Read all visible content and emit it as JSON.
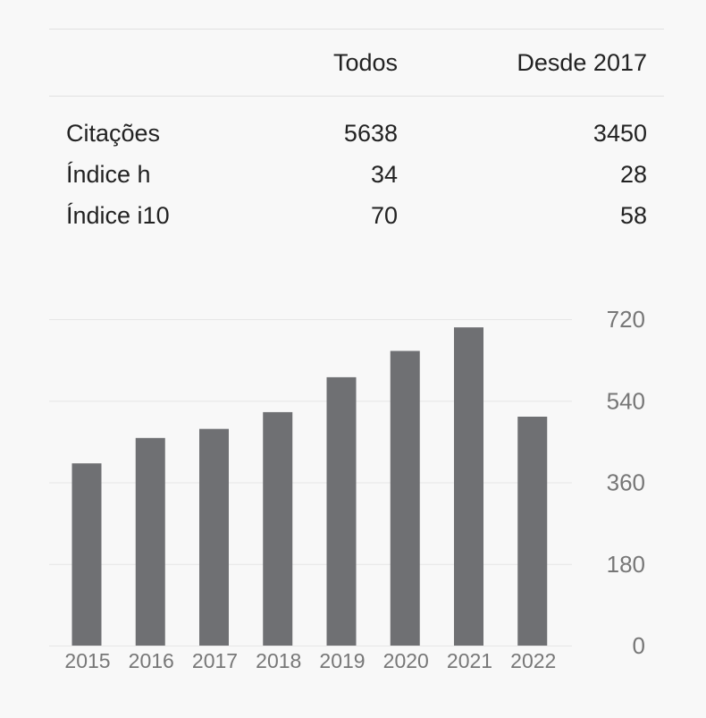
{
  "table": {
    "headers": [
      "Todos",
      "Desde 2017"
    ],
    "rows": [
      {
        "label": "Citações",
        "all": "5638",
        "since": "3450"
      },
      {
        "label": "Índice h",
        "all": "34",
        "since": "28"
      },
      {
        "label": "Índice i10",
        "all": "70",
        "since": "58"
      }
    ]
  },
  "chart_data": {
    "type": "bar",
    "title": "",
    "xlabel": "",
    "ylabel": "",
    "categories": [
      "2015",
      "2016",
      "2017",
      "2018",
      "2019",
      "2020",
      "2021",
      "2022"
    ],
    "values": [
      402,
      458,
      478,
      515,
      592,
      650,
      702,
      505
    ],
    "ylim": [
      0,
      720
    ],
    "yticks": [
      0,
      180,
      360,
      540,
      720
    ],
    "bar_color": "#6f7073",
    "grid": true,
    "gridline_color": "#e6e6e6",
    "tick_label_color": "#777777",
    "axis_side": "right"
  }
}
